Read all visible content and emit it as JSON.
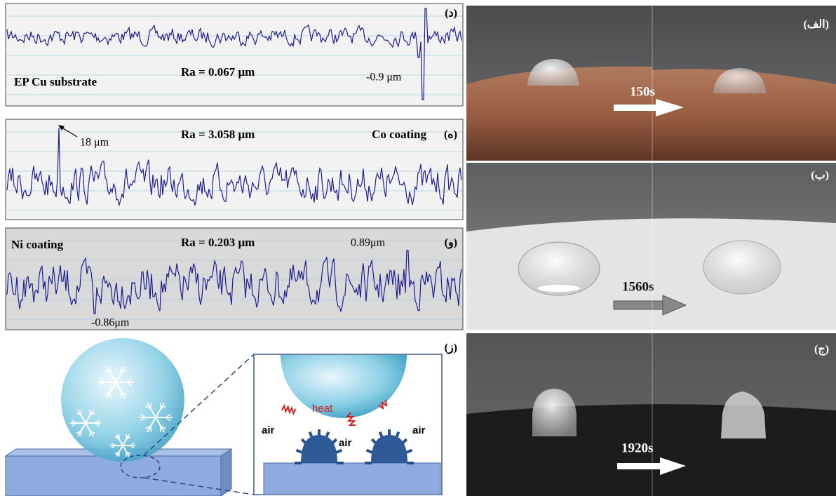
{
  "profiles": [
    {
      "label": "(د)",
      "caption": "EP Cu substrate",
      "ra": "Ra = 0.067 μm",
      "annotation": "-0.9 μm"
    },
    {
      "label": "(ه)",
      "caption": "Co coating",
      "ra": "Ra = 3.058 μm",
      "annotation": "18 μm"
    },
    {
      "label": "(و)",
      "caption": "Ni coating",
      "ra": "Ra = 0.203 μm",
      "annotation": "0.89μm",
      "annotation2": "-0.86μm"
    }
  ],
  "schematic": {
    "label": "(ز)",
    "heat": "heat",
    "air": [
      "air",
      "air",
      "air"
    ]
  },
  "photos": [
    {
      "label": "(الف)",
      "time": "150s"
    },
    {
      "label": "(ب)",
      "time": "1560s"
    },
    {
      "label": "(ج)",
      "time": "1920s"
    }
  ]
}
